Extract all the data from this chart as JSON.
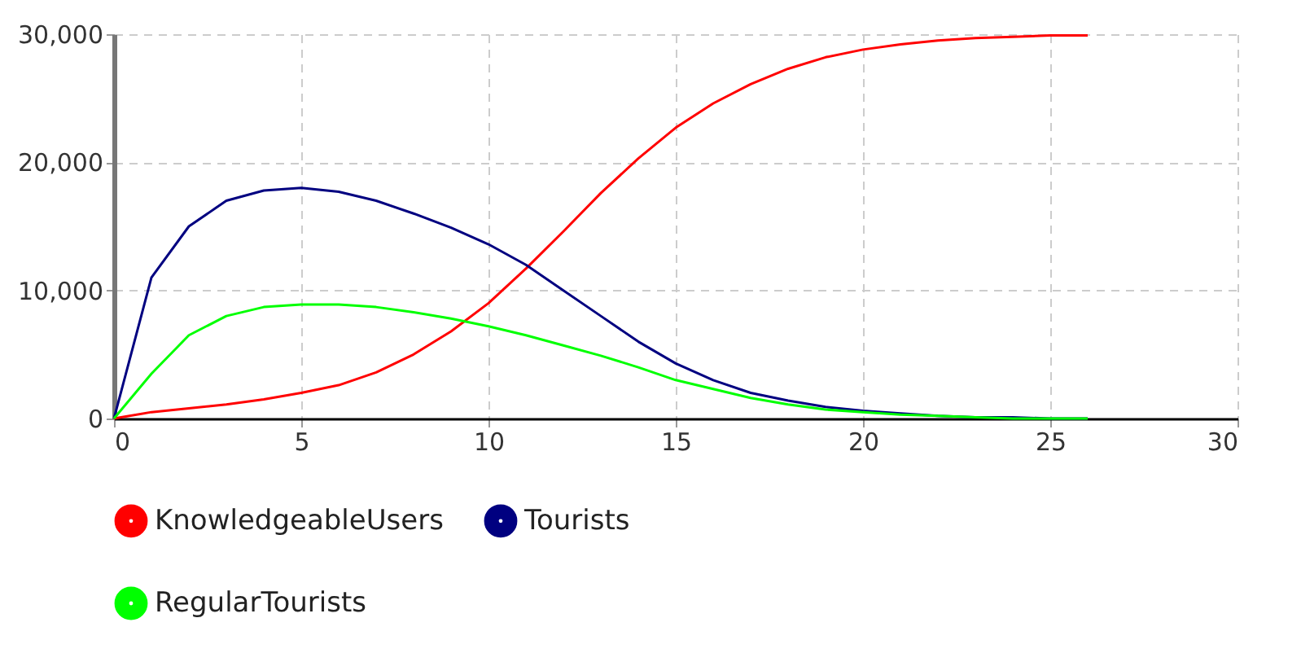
{
  "chart_data": {
    "type": "line",
    "x": [
      0,
      1,
      2,
      3,
      4,
      5,
      6,
      7,
      8,
      9,
      10,
      11,
      12,
      13,
      14,
      15,
      16,
      17,
      18,
      19,
      20,
      21,
      22,
      23,
      24,
      25,
      26
    ],
    "series": [
      {
        "name": "KnowledgeableUsers",
        "color": "#ff0000",
        "values": [
          0,
          500,
          800,
          1100,
          1500,
          2000,
          2600,
          3600,
          5000,
          6800,
          9000,
          11700,
          14600,
          17600,
          20300,
          22700,
          24600,
          26100,
          27300,
          28200,
          28800,
          29200,
          29500,
          29700,
          29800,
          29900,
          29900
        ]
      },
      {
        "name": "Tourists",
        "color": "#000080",
        "values": [
          0,
          11000,
          15000,
          17000,
          17800,
          18000,
          17700,
          17000,
          16000,
          14900,
          13600,
          12000,
          10000,
          8000,
          6000,
          4300,
          3000,
          2000,
          1400,
          900,
          600,
          400,
          200,
          100,
          100,
          0,
          0
        ]
      },
      {
        "name": "RegularTourists",
        "color": "#00ff00",
        "values": [
          0,
          3500,
          6500,
          8000,
          8700,
          8900,
          8900,
          8700,
          8300,
          7800,
          7200,
          6500,
          5700,
          4900,
          4000,
          3000,
          2300,
          1600,
          1100,
          700,
          500,
          300,
          200,
          100,
          0,
          0,
          0
        ]
      }
    ],
    "xlim": [
      0,
      30
    ],
    "xticks": [
      0,
      5,
      10,
      15,
      20,
      25,
      30
    ],
    "ylim": [
      0,
      30000
    ],
    "yticks": [
      0,
      {
        "value": 10000,
        "label": "10,000"
      },
      {
        "value": 20000,
        "label": "20,000"
      },
      {
        "value": 30000,
        "label": "30,000"
      }
    ],
    "grid": true,
    "legend": "bottom",
    "marker": "none",
    "line_style": "solid"
  }
}
